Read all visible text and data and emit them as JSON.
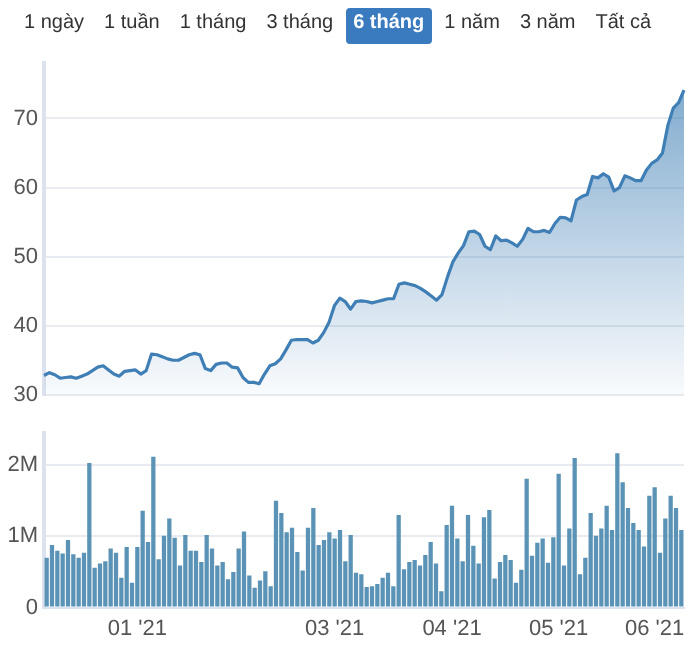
{
  "chart_data": [
    {
      "type": "other",
      "annotations": [
        "1 ngày",
        "1 tuần",
        "1 tháng",
        "3 tháng",
        "6 tháng",
        "1 năm",
        "3 năm",
        "Tất cả"
      ]
    },
    {
      "type": "area",
      "categories": [
        null,
        null,
        null,
        null,
        null,
        null,
        null,
        null,
        null,
        null,
        null,
        null,
        null,
        null,
        null,
        null,
        null,
        null,
        null,
        null,
        null,
        null,
        null,
        null,
        null,
        null,
        null,
        null,
        null,
        null,
        null,
        null,
        null,
        null,
        null,
        null,
        null,
        null,
        null,
        null,
        null,
        null,
        null,
        null,
        null,
        null,
        null,
        null,
        null,
        null,
        null,
        null,
        null,
        null,
        null,
        null,
        null,
        null,
        null,
        null,
        null,
        null,
        null,
        null,
        null,
        null,
        null,
        null,
        null,
        null,
        null,
        null,
        null,
        null,
        null,
        null,
        null,
        null,
        null,
        null,
        null,
        null,
        null,
        null,
        null,
        null,
        null,
        null,
        null,
        null,
        null,
        null,
        null,
        null,
        null,
        null,
        null,
        null,
        null,
        null,
        null,
        null,
        null,
        null,
        null,
        null,
        null,
        null,
        null,
        null,
        null,
        null,
        null,
        null,
        null,
        null,
        null,
        null,
        null,
        null
      ],
      "series": [
        {
          "color": "#3f7fb5",
          "values": [
            32.8,
            33.2,
            32.9,
            32.4,
            32.5,
            32.6,
            32.4,
            32.7,
            33.0,
            33.5,
            34.0,
            34.2,
            33.6,
            33.0,
            32.7,
            33.4,
            33.5,
            33.6,
            33.0,
            33.5,
            35.9,
            35.8,
            35.5,
            35.2,
            35.0,
            35.0,
            35.4,
            35.8,
            36.0,
            35.8,
            33.8,
            33.5,
            34.4,
            34.6,
            34.6,
            34.0,
            33.9,
            32.5,
            31.8,
            31.8,
            31.6,
            33.0,
            34.2,
            34.5,
            35.2,
            36.5,
            37.9,
            38.0,
            38.0,
            38.0,
            37.5,
            37.9,
            39.0,
            40.5,
            42.9,
            44.0,
            43.5,
            42.4,
            43.5,
            43.6,
            43.5,
            43.3,
            43.5,
            43.7,
            43.9,
            43.9,
            46.0,
            46.2,
            46.0,
            45.8,
            45.4,
            44.9,
            44.3,
            43.7,
            44.5,
            47.0,
            49.2,
            50.5,
            51.6,
            53.6,
            53.7,
            53.2,
            51.5,
            51.0,
            53.0,
            52.3,
            52.4,
            52.0,
            51.5,
            52.5,
            54.1,
            53.6,
            53.6,
            53.8,
            53.5,
            54.8,
            55.7,
            55.6,
            55.2,
            58.2,
            58.7,
            59.0,
            61.6,
            61.4,
            62.0,
            61.5,
            59.5,
            60.0,
            61.7,
            61.4,
            61.0,
            61.0,
            62.5,
            63.5,
            64.0,
            65.0,
            69.0,
            71.5,
            72.3,
            74.1
          ]
        }
      ],
      "ylim": [
        30,
        78
      ],
      "yticks": [
        30,
        40,
        50,
        60,
        70
      ],
      "grid": "y",
      "tick_labels": "y",
      "marker": "none"
    },
    {
      "type": "bar",
      "categories": [
        null,
        null,
        null,
        null,
        null,
        null,
        null,
        null,
        null,
        null,
        null,
        null,
        null,
        null,
        null,
        null,
        null,
        "01 '21",
        null,
        null,
        null,
        null,
        null,
        null,
        null,
        null,
        null,
        null,
        null,
        null,
        null,
        null,
        null,
        null,
        null,
        null,
        null,
        null,
        null,
        null,
        null,
        null,
        null,
        null,
        null,
        null,
        null,
        null,
        null,
        null,
        null,
        null,
        null,
        null,
        "03 '21",
        null,
        null,
        null,
        null,
        null,
        null,
        null,
        null,
        null,
        null,
        null,
        null,
        null,
        null,
        null,
        null,
        null,
        null,
        null,
        null,
        null,
        "04 '21",
        null,
        null,
        null,
        null,
        null,
        null,
        null,
        null,
        null,
        null,
        null,
        null,
        null,
        null,
        null,
        null,
        null,
        null,
        null,
        "05 '21",
        null,
        null,
        null,
        null,
        null,
        null,
        null,
        null,
        null,
        null,
        null,
        null,
        null,
        null,
        null,
        null,
        null,
        "06 '21",
        null,
        null,
        null,
        null,
        null
      ],
      "series": [
        {
          "color": "#5a93b5",
          "values": [
            0.7,
            0.88,
            0.8,
            0.76,
            0.95,
            0.75,
            0.7,
            0.77,
            2.03,
            0.56,
            0.62,
            0.65,
            0.83,
            0.77,
            0.42,
            0.85,
            0.35,
            0.85,
            1.36,
            0.92,
            2.12,
            0.68,
            1.01,
            1.25,
            0.98,
            0.59,
            1.02,
            0.8,
            0.8,
            0.64,
            1.02,
            0.83,
            0.59,
            0.64,
            0.4,
            0.5,
            0.83,
            1.07,
            0.45,
            0.28,
            0.38,
            0.51,
            0.3,
            1.5,
            1.33,
            1.06,
            1.12,
            0.78,
            0.52,
            1.12,
            1.4,
            0.88,
            0.95,
            1.06,
            0.97,
            1.09,
            0.65,
            1.02,
            0.49,
            0.47,
            0.29,
            0.3,
            0.33,
            0.42,
            0.49,
            0.3,
            1.3,
            0.54,
            0.64,
            0.67,
            0.59,
            0.74,
            0.92,
            0.62,
            0.23,
            1.16,
            1.43,
            0.97,
            0.65,
            1.3,
            0.87,
            0.62,
            1.27,
            1.37,
            0.41,
            0.64,
            0.74,
            0.67,
            0.35,
            0.53,
            1.81,
            0.73,
            0.91,
            0.97,
            0.63,
            0.99,
            1.88,
            0.59,
            1.11,
            2.1,
            0.47,
            0.7,
            1.33,
            1.01,
            1.11,
            1.43,
            1.09,
            2.17,
            1.76,
            1.4,
            1.19,
            1.09,
            0.86,
            1.57,
            1.69,
            0.77,
            1.25,
            1.57,
            1.4,
            1.09
          ]
        }
      ],
      "ylim": [
        0,
        2.45
      ],
      "yticks": [
        0,
        {
          "value": 1,
          "label": "1M"
        },
        {
          "value": 2,
          "label": "2M"
        }
      ],
      "grid": "y"
    }
  ]
}
